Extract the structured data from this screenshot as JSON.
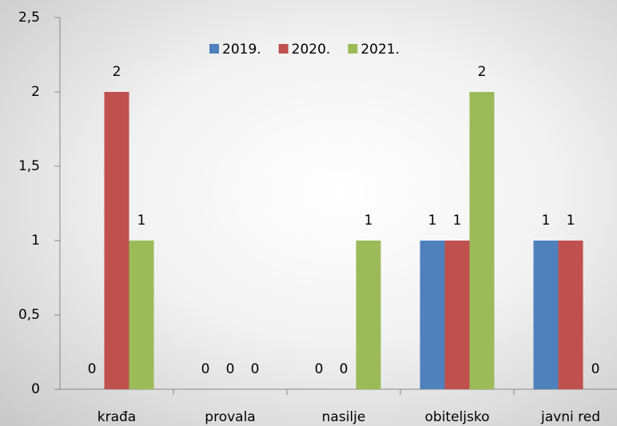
{
  "chart_data": {
    "type": "bar",
    "categories": [
      "krađa",
      "provala",
      "nasilje",
      "obiteljsko",
      "javni red"
    ],
    "series": [
      {
        "name": "2019.",
        "color": "#4f81bd",
        "values": [
          0,
          0,
          0,
          1,
          1
        ]
      },
      {
        "name": "2020.",
        "color": "#c0504d",
        "values": [
          2,
          0,
          0,
          1,
          1
        ]
      },
      {
        "name": "2021.",
        "color": "#9bbb59",
        "values": [
          1,
          0,
          1,
          2,
          0
        ]
      }
    ],
    "ylim": [
      0,
      2.5
    ],
    "yticks": [
      0,
      {
        "value": 0.5,
        "label": "0,5"
      },
      1,
      {
        "value": 1.5,
        "label": "1,5"
      },
      2,
      {
        "value": 2.5,
        "label": "2,5"
      }
    ],
    "legend": "top"
  }
}
